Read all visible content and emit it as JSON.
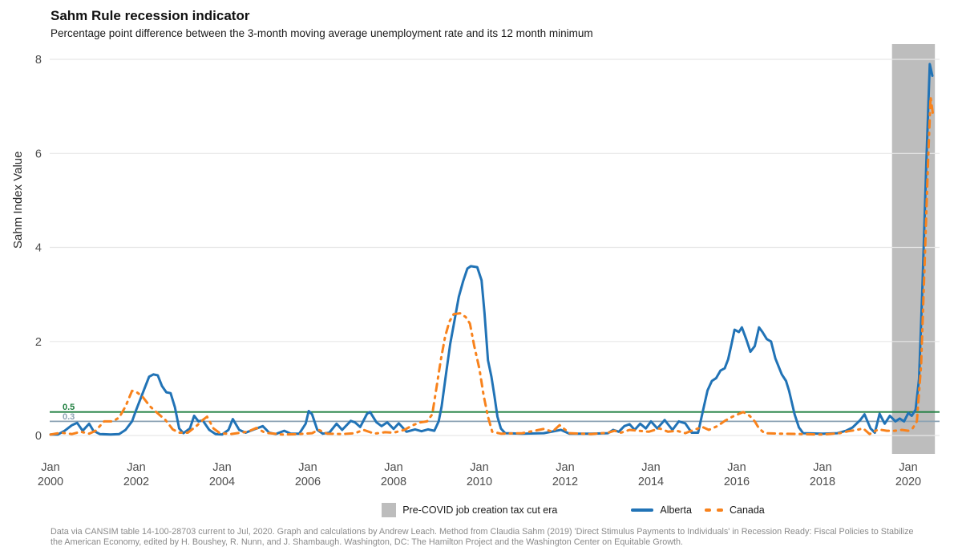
{
  "chart": {
    "title": "Sahm Rule recession indicator",
    "subtitle": "Percentage point difference between the 3-month moving average unemployment rate and its 12 month minimum",
    "ylabel": "Sahm Index Value",
    "caption": "Data via CANSIM table 14-100-28703 current to Jul, 2020. Graph and calculations by Andrew Leach. Method from Claudia Sahm (2019) 'Direct Stimulus Payments to Individuals' in Recession Ready: Fiscal Policies to Stabilize the American Economy, edited by H. Boushey, R. Nunn, and J. Shambaugh. Washington, DC: The Hamilton Project and the Washington Center on Equitable Growth."
  },
  "legend": {
    "shade_label": "Pre-COVID job creation tax cut era",
    "alberta_label": "Alberta",
    "canada_label": "Canada"
  },
  "chart_data": {
    "type": "line",
    "title": "Sahm Rule recession indicator",
    "xlabel": "",
    "ylabel": "Sahm Index Value",
    "xlim": [
      2000,
      2020.73
    ],
    "ylim": [
      0,
      8.32
    ],
    "grid": "horizontal-only",
    "grid_color": "#E7E7E7",
    "axis_text_color": "#4D4D4D",
    "legend_position": "bottom",
    "y_ticks": [
      0,
      2,
      4,
      6,
      8
    ],
    "x_ticks": [
      {
        "month": "Jan",
        "year": "2000",
        "value": 2000
      },
      {
        "month": "Jan",
        "year": "2002",
        "value": 2002
      },
      {
        "month": "Jan",
        "year": "2004",
        "value": 2004
      },
      {
        "month": "Jan",
        "year": "2006",
        "value": 2006
      },
      {
        "month": "Jan",
        "year": "2008",
        "value": 2008
      },
      {
        "month": "Jan",
        "year": "2010",
        "value": 2010
      },
      {
        "month": "Jan",
        "year": "2012",
        "value": 2012
      },
      {
        "month": "Jan",
        "year": "2014",
        "value": 2014
      },
      {
        "month": "Jan",
        "year": "2016",
        "value": 2016
      },
      {
        "month": "Jan",
        "year": "2018",
        "value": 2018
      },
      {
        "month": "Jan",
        "year": "2020",
        "value": 2020
      }
    ],
    "reference_lines": [
      {
        "value": 0.5,
        "label": "0.5",
        "color": "#1B7D3C"
      },
      {
        "value": 0.3,
        "label": "0.3",
        "color": "#8CA3B4"
      }
    ],
    "shaded_region": {
      "label": "Pre-COVID job creation tax cut era",
      "x_start": 2019.62,
      "x_end": 2020.62,
      "color": "#BDBDBD"
    },
    "series": [
      {
        "name": "Alberta",
        "color": "#2173B6",
        "style": "solid",
        "points": [
          [
            2000.0,
            0.02
          ],
          [
            2000.17,
            0.02
          ],
          [
            2000.33,
            0.1
          ],
          [
            2000.5,
            0.22
          ],
          [
            2000.62,
            0.27
          ],
          [
            2000.75,
            0.1
          ],
          [
            2000.9,
            0.25
          ],
          [
            2001.0,
            0.1
          ],
          [
            2001.15,
            0.03
          ],
          [
            2001.4,
            0.02
          ],
          [
            2001.6,
            0.03
          ],
          [
            2001.75,
            0.12
          ],
          [
            2001.9,
            0.3
          ],
          [
            2002.0,
            0.55
          ],
          [
            2002.15,
            0.9
          ],
          [
            2002.3,
            1.25
          ],
          [
            2002.4,
            1.3
          ],
          [
            2002.5,
            1.28
          ],
          [
            2002.6,
            1.05
          ],
          [
            2002.7,
            0.92
          ],
          [
            2002.8,
            0.9
          ],
          [
            2002.9,
            0.6
          ],
          [
            2003.0,
            0.15
          ],
          [
            2003.1,
            0.05
          ],
          [
            2003.25,
            0.15
          ],
          [
            2003.35,
            0.42
          ],
          [
            2003.45,
            0.3
          ],
          [
            2003.55,
            0.32
          ],
          [
            2003.7,
            0.12
          ],
          [
            2003.85,
            0.03
          ],
          [
            2004.0,
            0.02
          ],
          [
            2004.15,
            0.12
          ],
          [
            2004.25,
            0.35
          ],
          [
            2004.4,
            0.12
          ],
          [
            2004.55,
            0.06
          ],
          [
            2004.75,
            0.13
          ],
          [
            2004.95,
            0.2
          ],
          [
            2005.1,
            0.06
          ],
          [
            2005.25,
            0.03
          ],
          [
            2005.45,
            0.1
          ],
          [
            2005.6,
            0.04
          ],
          [
            2005.8,
            0.04
          ],
          [
            2005.95,
            0.25
          ],
          [
            2006.02,
            0.52
          ],
          [
            2006.1,
            0.45
          ],
          [
            2006.22,
            0.12
          ],
          [
            2006.35,
            0.04
          ],
          [
            2006.5,
            0.06
          ],
          [
            2006.67,
            0.25
          ],
          [
            2006.8,
            0.12
          ],
          [
            2007.0,
            0.31
          ],
          [
            2007.1,
            0.28
          ],
          [
            2007.22,
            0.18
          ],
          [
            2007.38,
            0.46
          ],
          [
            2007.45,
            0.5
          ],
          [
            2007.6,
            0.28
          ],
          [
            2007.72,
            0.2
          ],
          [
            2007.85,
            0.28
          ],
          [
            2008.0,
            0.14
          ],
          [
            2008.12,
            0.26
          ],
          [
            2008.3,
            0.08
          ],
          [
            2008.5,
            0.13
          ],
          [
            2008.65,
            0.09
          ],
          [
            2008.8,
            0.13
          ],
          [
            2008.95,
            0.1
          ],
          [
            2009.05,
            0.3
          ],
          [
            2009.12,
            0.62
          ],
          [
            2009.22,
            1.3
          ],
          [
            2009.32,
            1.95
          ],
          [
            2009.42,
            2.45
          ],
          [
            2009.52,
            2.95
          ],
          [
            2009.62,
            3.28
          ],
          [
            2009.72,
            3.55
          ],
          [
            2009.8,
            3.6
          ],
          [
            2009.95,
            3.58
          ],
          [
            2010.05,
            3.3
          ],
          [
            2010.12,
            2.6
          ],
          [
            2010.2,
            1.6
          ],
          [
            2010.28,
            1.25
          ],
          [
            2010.35,
            0.85
          ],
          [
            2010.42,
            0.4
          ],
          [
            2010.5,
            0.15
          ],
          [
            2010.6,
            0.05
          ],
          [
            2011.0,
            0.04
          ],
          [
            2011.5,
            0.05
          ],
          [
            2011.9,
            0.12
          ],
          [
            2012.1,
            0.04
          ],
          [
            2012.6,
            0.04
          ],
          [
            2013.0,
            0.05
          ],
          [
            2013.12,
            0.12
          ],
          [
            2013.25,
            0.08
          ],
          [
            2013.38,
            0.2
          ],
          [
            2013.5,
            0.24
          ],
          [
            2013.62,
            0.12
          ],
          [
            2013.75,
            0.25
          ],
          [
            2013.88,
            0.15
          ],
          [
            2014.0,
            0.3
          ],
          [
            2014.15,
            0.15
          ],
          [
            2014.32,
            0.33
          ],
          [
            2014.5,
            0.12
          ],
          [
            2014.65,
            0.3
          ],
          [
            2014.8,
            0.26
          ],
          [
            2014.95,
            0.06
          ],
          [
            2015.1,
            0.06
          ],
          [
            2015.22,
            0.56
          ],
          [
            2015.32,
            0.96
          ],
          [
            2015.42,
            1.16
          ],
          [
            2015.52,
            1.22
          ],
          [
            2015.62,
            1.38
          ],
          [
            2015.72,
            1.43
          ],
          [
            2015.8,
            1.62
          ],
          [
            2015.88,
            1.95
          ],
          [
            2015.95,
            2.25
          ],
          [
            2016.05,
            2.2
          ],
          [
            2016.12,
            2.3
          ],
          [
            2016.22,
            2.05
          ],
          [
            2016.32,
            1.78
          ],
          [
            2016.42,
            1.9
          ],
          [
            2016.52,
            2.3
          ],
          [
            2016.6,
            2.2
          ],
          [
            2016.7,
            2.05
          ],
          [
            2016.8,
            2.0
          ],
          [
            2016.9,
            1.64
          ],
          [
            2017.05,
            1.3
          ],
          [
            2017.15,
            1.16
          ],
          [
            2017.22,
            0.95
          ],
          [
            2017.35,
            0.45
          ],
          [
            2017.45,
            0.17
          ],
          [
            2017.55,
            0.05
          ],
          [
            2018.0,
            0.04
          ],
          [
            2018.35,
            0.05
          ],
          [
            2018.55,
            0.1
          ],
          [
            2018.7,
            0.17
          ],
          [
            2018.88,
            0.33
          ],
          [
            2018.98,
            0.45
          ],
          [
            2019.12,
            0.15
          ],
          [
            2019.22,
            0.06
          ],
          [
            2019.33,
            0.46
          ],
          [
            2019.45,
            0.25
          ],
          [
            2019.57,
            0.42
          ],
          [
            2019.7,
            0.3
          ],
          [
            2019.8,
            0.36
          ],
          [
            2019.9,
            0.3
          ],
          [
            2020.0,
            0.48
          ],
          [
            2020.08,
            0.42
          ],
          [
            2020.17,
            0.55
          ],
          [
            2020.25,
            1.2
          ],
          [
            2020.33,
            3.2
          ],
          [
            2020.42,
            5.8
          ],
          [
            2020.5,
            7.9
          ],
          [
            2020.56,
            7.65
          ]
        ]
      },
      {
        "name": "Canada",
        "color": "#F8821C",
        "style": "dashdot",
        "points": [
          [
            2000.0,
            0.02
          ],
          [
            2000.25,
            0.06
          ],
          [
            2000.5,
            0.03
          ],
          [
            2000.7,
            0.08
          ],
          [
            2000.9,
            0.04
          ],
          [
            2001.05,
            0.1
          ],
          [
            2001.25,
            0.3
          ],
          [
            2001.45,
            0.3
          ],
          [
            2001.6,
            0.38
          ],
          [
            2001.75,
            0.62
          ],
          [
            2001.9,
            0.95
          ],
          [
            2002.0,
            0.93
          ],
          [
            2002.15,
            0.82
          ],
          [
            2002.32,
            0.62
          ],
          [
            2002.5,
            0.47
          ],
          [
            2002.68,
            0.33
          ],
          [
            2002.85,
            0.13
          ],
          [
            2003.0,
            0.06
          ],
          [
            2003.2,
            0.06
          ],
          [
            2003.4,
            0.2
          ],
          [
            2003.55,
            0.33
          ],
          [
            2003.65,
            0.4
          ],
          [
            2003.8,
            0.15
          ],
          [
            2003.95,
            0.05
          ],
          [
            2004.2,
            0.03
          ],
          [
            2004.6,
            0.08
          ],
          [
            2004.8,
            0.16
          ],
          [
            2005.0,
            0.06
          ],
          [
            2005.4,
            0.02
          ],
          [
            2005.8,
            0.03
          ],
          [
            2006.1,
            0.05
          ],
          [
            2006.25,
            0.12
          ],
          [
            2006.45,
            0.04
          ],
          [
            2006.8,
            0.03
          ],
          [
            2007.1,
            0.05
          ],
          [
            2007.3,
            0.12
          ],
          [
            2007.55,
            0.04
          ],
          [
            2007.8,
            0.07
          ],
          [
            2008.0,
            0.06
          ],
          [
            2008.25,
            0.12
          ],
          [
            2008.45,
            0.22
          ],
          [
            2008.62,
            0.28
          ],
          [
            2008.78,
            0.3
          ],
          [
            2008.9,
            0.45
          ],
          [
            2009.0,
            1.02
          ],
          [
            2009.1,
            1.6
          ],
          [
            2009.2,
            2.1
          ],
          [
            2009.3,
            2.42
          ],
          [
            2009.4,
            2.58
          ],
          [
            2009.55,
            2.6
          ],
          [
            2009.68,
            2.52
          ],
          [
            2009.78,
            2.38
          ],
          [
            2009.88,
            1.9
          ],
          [
            2010.0,
            1.42
          ],
          [
            2010.1,
            0.85
          ],
          [
            2010.2,
            0.4
          ],
          [
            2010.3,
            0.08
          ],
          [
            2010.5,
            0.04
          ],
          [
            2011.0,
            0.05
          ],
          [
            2011.5,
            0.14
          ],
          [
            2011.7,
            0.08
          ],
          [
            2011.87,
            0.22
          ],
          [
            2012.1,
            0.05
          ],
          [
            2012.6,
            0.03
          ],
          [
            2013.0,
            0.06
          ],
          [
            2013.15,
            0.1
          ],
          [
            2013.3,
            0.06
          ],
          [
            2013.5,
            0.12
          ],
          [
            2013.7,
            0.1
          ],
          [
            2013.95,
            0.08
          ],
          [
            2014.2,
            0.15
          ],
          [
            2014.4,
            0.08
          ],
          [
            2014.6,
            0.1
          ],
          [
            2014.8,
            0.05
          ],
          [
            2015.0,
            0.12
          ],
          [
            2015.2,
            0.18
          ],
          [
            2015.35,
            0.12
          ],
          [
            2015.55,
            0.2
          ],
          [
            2015.72,
            0.31
          ],
          [
            2015.9,
            0.4
          ],
          [
            2016.05,
            0.46
          ],
          [
            2016.15,
            0.5
          ],
          [
            2016.3,
            0.42
          ],
          [
            2016.42,
            0.3
          ],
          [
            2016.52,
            0.15
          ],
          [
            2016.65,
            0.05
          ],
          [
            2017.0,
            0.04
          ],
          [
            2017.5,
            0.03
          ],
          [
            2018.0,
            0.02
          ],
          [
            2018.4,
            0.05
          ],
          [
            2018.6,
            0.09
          ],
          [
            2018.8,
            0.12
          ],
          [
            2018.95,
            0.15
          ],
          [
            2019.1,
            0.03
          ],
          [
            2019.3,
            0.13
          ],
          [
            2019.5,
            0.1
          ],
          [
            2019.68,
            0.1
          ],
          [
            2019.85,
            0.12
          ],
          [
            2020.0,
            0.1
          ],
          [
            2020.1,
            0.15
          ],
          [
            2020.2,
            0.3
          ],
          [
            2020.3,
            1.5
          ],
          [
            2020.38,
            3.6
          ],
          [
            2020.46,
            5.8
          ],
          [
            2020.52,
            7.2
          ],
          [
            2020.58,
            6.8
          ]
        ]
      }
    ]
  }
}
